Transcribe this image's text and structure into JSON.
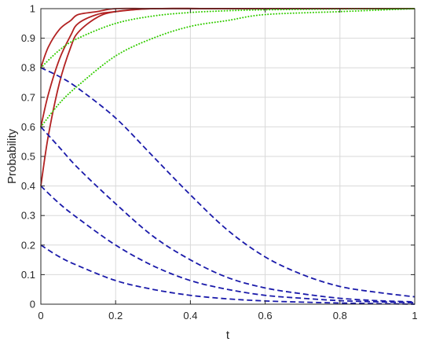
{
  "chart_data": {
    "type": "line",
    "xlabel": "t",
    "ylabel": "Probability",
    "xlim": [
      0,
      1
    ],
    "ylim": [
      0,
      1
    ],
    "xticks": [
      "0",
      "0.2",
      "0.4",
      "0.6",
      "0.8",
      "1"
    ],
    "yticks": [
      "0",
      "0.1",
      "0.2",
      "0.3",
      "0.4",
      "0.5",
      "0.6",
      "0.7",
      "0.8",
      "0.9",
      "1"
    ],
    "grid": true,
    "series": [
      {
        "style": "solid",
        "color": "#b22222",
        "x": [
          0,
          0.02,
          0.05,
          0.08,
          0.1,
          0.15,
          0.2,
          0.3,
          0.5,
          1.0
        ],
        "y": [
          0.4,
          0.57,
          0.75,
          0.87,
          0.92,
          0.97,
          0.99,
          1.0,
          1.0,
          1.0
        ]
      },
      {
        "style": "solid",
        "color": "#b22222",
        "x": [
          0,
          0.02,
          0.05,
          0.08,
          0.1,
          0.15,
          0.2,
          0.3,
          0.5,
          1.0
        ],
        "y": [
          0.6,
          0.71,
          0.83,
          0.91,
          0.95,
          0.98,
          0.99,
          1.0,
          1.0,
          1.0
        ]
      },
      {
        "style": "solid",
        "color": "#b22222",
        "x": [
          0,
          0.02,
          0.05,
          0.08,
          0.1,
          0.15,
          0.2,
          0.3,
          0.5,
          1.0
        ],
        "y": [
          0.8,
          0.87,
          0.93,
          0.96,
          0.98,
          0.99,
          1.0,
          1.0,
          1.0,
          1.0
        ]
      },
      {
        "style": "dotted",
        "color": "#33cc00",
        "x": [
          0,
          0.05,
          0.1,
          0.2,
          0.3,
          0.4,
          0.5,
          0.6,
          0.8,
          1.0
        ],
        "y": [
          0.6,
          0.68,
          0.74,
          0.84,
          0.9,
          0.94,
          0.96,
          0.98,
          0.99,
          1.0
        ]
      },
      {
        "style": "dotted",
        "color": "#33cc00",
        "x": [
          0,
          0.05,
          0.1,
          0.2,
          0.3,
          0.4,
          0.5,
          0.6,
          0.8,
          1.0
        ],
        "y": [
          0.8,
          0.86,
          0.9,
          0.95,
          0.975,
          0.987,
          0.993,
          0.996,
          0.999,
          1.0
        ]
      },
      {
        "style": "dashed",
        "color": "#1a1aaa",
        "x": [
          0,
          0.05,
          0.1,
          0.2,
          0.3,
          0.4,
          0.5,
          0.6,
          0.7,
          0.8,
          0.9,
          1.0
        ],
        "y": [
          0.8,
          0.77,
          0.73,
          0.63,
          0.5,
          0.37,
          0.25,
          0.16,
          0.1,
          0.06,
          0.04,
          0.025
        ]
      },
      {
        "style": "dashed",
        "color": "#1a1aaa",
        "x": [
          0,
          0.05,
          0.1,
          0.2,
          0.3,
          0.4,
          0.5,
          0.6,
          0.7,
          0.8,
          0.9,
          1.0
        ],
        "y": [
          0.6,
          0.53,
          0.46,
          0.34,
          0.23,
          0.15,
          0.09,
          0.055,
          0.035,
          0.02,
          0.012,
          0.008
        ]
      },
      {
        "style": "dashed",
        "color": "#1a1aaa",
        "x": [
          0,
          0.05,
          0.1,
          0.2,
          0.3,
          0.4,
          0.5,
          0.6,
          0.7,
          0.8,
          0.9,
          1.0
        ],
        "y": [
          0.4,
          0.34,
          0.29,
          0.2,
          0.13,
          0.08,
          0.05,
          0.03,
          0.02,
          0.012,
          0.008,
          0.005
        ]
      },
      {
        "style": "dashed",
        "color": "#1a1aaa",
        "x": [
          0,
          0.05,
          0.1,
          0.2,
          0.3,
          0.4,
          0.5,
          0.6,
          0.7,
          0.8,
          0.9,
          1.0
        ],
        "y": [
          0.2,
          0.16,
          0.13,
          0.08,
          0.05,
          0.03,
          0.018,
          0.011,
          0.007,
          0.004,
          0.002,
          0.0
        ]
      }
    ]
  }
}
